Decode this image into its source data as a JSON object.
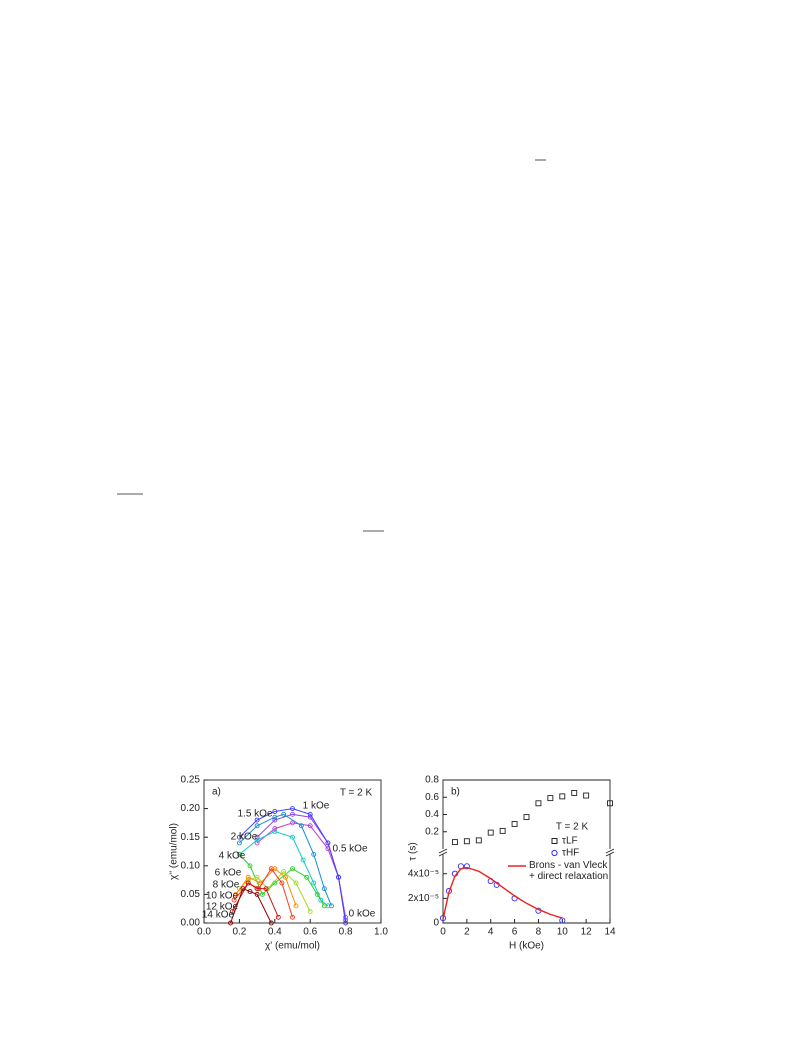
{
  "chart_data": [
    {
      "type": "scatter",
      "label": "a)",
      "annotation": "T = 2 K",
      "x_label": "χ' (emu/mol)",
      "y_label": "χ'' (emu/mol)",
      "xlim": [
        0,
        1
      ],
      "ylim": [
        0,
        0.25
      ],
      "xticks": [
        {
          "value": 0,
          "label": "0.0"
        },
        {
          "value": 0.2,
          "label": "0.2"
        },
        {
          "value": 0.4,
          "label": "0.4"
        },
        {
          "value": 0.6,
          "label": "0.6"
        },
        {
          "value": 0.8,
          "label": "0.8"
        },
        {
          "value": 1,
          "label": "1.0"
        }
      ],
      "yticks": [
        {
          "value": 0,
          "label": "0.00"
        },
        {
          "value": 0.05,
          "label": "0.05"
        },
        {
          "value": 0.1,
          "label": "0.10"
        },
        {
          "value": 0.15,
          "label": "0.15"
        },
        {
          "value": 0.2,
          "label": "0.20"
        },
        {
          "value": 0.25,
          "label": "0.25"
        }
      ],
      "series": [
        {
          "name": "0 kOe",
          "color": "#c040d0",
          "x": [
            0.3,
            0.4,
            0.5,
            0.6,
            0.7,
            0.76,
            0.8
          ],
          "y": [
            0.14,
            0.165,
            0.175,
            0.17,
            0.13,
            0.08,
            0.01
          ]
        },
        {
          "name": "0.5 kOe",
          "color": "#9040f0",
          "x": [
            0.3,
            0.4,
            0.5,
            0.6,
            0.7,
            0.76,
            0.8
          ],
          "y": [
            0.15,
            0.18,
            0.19,
            0.185,
            0.14,
            0.08,
            0.005
          ]
        },
        {
          "name": "1 kOe",
          "color": "#4040ff",
          "x": [
            0.2,
            0.3,
            0.4,
            0.5,
            0.6,
            0.7,
            0.76,
            0.8
          ],
          "y": [
            0.15,
            0.18,
            0.195,
            0.2,
            0.19,
            0.14,
            0.08,
            0.0
          ]
        },
        {
          "name": "1.5 kOe",
          "color": "#1a90d0",
          "x": [
            0.2,
            0.3,
            0.4,
            0.45,
            0.55,
            0.62,
            0.68,
            0.72
          ],
          "y": [
            0.14,
            0.17,
            0.185,
            0.19,
            0.17,
            0.12,
            0.06,
            0.03
          ]
        },
        {
          "name": "2 kOe",
          "color": "#10c8c8",
          "x": [
            0.2,
            0.3,
            0.4,
            0.5,
            0.56,
            0.62,
            0.66,
            0.7
          ],
          "y": [
            0.12,
            0.145,
            0.16,
            0.15,
            0.11,
            0.07,
            0.04,
            0.03
          ]
        },
        {
          "name": "4 kOe",
          "color": "#30d030",
          "x": [
            0.2,
            0.26,
            0.33,
            0.4,
            0.5,
            0.58,
            0.64,
            0.68
          ],
          "y": [
            0.12,
            0.1,
            0.05,
            0.07,
            0.095,
            0.08,
            0.05,
            0.03
          ]
        },
        {
          "name": "6 kOe",
          "color": "#a8d820",
          "x": [
            0.2,
            0.25,
            0.3,
            0.36,
            0.45,
            0.52,
            0.6
          ],
          "y": [
            0.06,
            0.075,
            0.08,
            0.06,
            0.09,
            0.07,
            0.02
          ]
        },
        {
          "name": "8 kOe",
          "color": "#ff8c00",
          "x": [
            0.18,
            0.25,
            0.32,
            0.4,
            0.46,
            0.52
          ],
          "y": [
            0.05,
            0.08,
            0.07,
            0.095,
            0.08,
            0.03
          ]
        },
        {
          "name": "10 kOe",
          "color": "#ff3a20",
          "x": [
            0.17,
            0.25,
            0.31,
            0.38,
            0.44,
            0.5
          ],
          "y": [
            0.04,
            0.07,
            0.06,
            0.095,
            0.07,
            0.01
          ]
        },
        {
          "name": "12 kOe",
          "color": "#d01010",
          "x": [
            0.16,
            0.25,
            0.3,
            0.35,
            0.42
          ],
          "y": [
            0.02,
            0.07,
            0.06,
            0.06,
            0.01
          ]
        },
        {
          "name": "14 kOe",
          "color": "#8b0000",
          "x": [
            0.15,
            0.22,
            0.26,
            0.3,
            0.38
          ],
          "y": [
            0.0,
            0.06,
            0.055,
            0.05,
            0.0
          ]
        }
      ]
    },
    {
      "type": "scatter",
      "label": "b)",
      "annotation": "T = 2 K",
      "x_label": "H (kOe)",
      "y_label": "τ (s)",
      "xlim": [
        0,
        14
      ],
      "xticks": [
        0,
        2,
        4,
        6,
        8,
        10,
        12,
        14
      ],
      "ylim": [
        0,
        5.6e-05
      ],
      "yticks": [
        0,
        {
          "value": 2e-05,
          "label": "2x10⁻⁵"
        },
        {
          "value": 4e-05,
          "label": "4x10⁻⁵"
        }
      ],
      "y2lim": [
        0,
        0.8
      ],
      "y2ticks": [
        0.2,
        0.4,
        0.6,
        0.8
      ],
      "series": [
        {
          "name": "τLF",
          "color": "#222222",
          "marker": "square",
          "axis": "y2",
          "x": [
            1,
            2,
            3,
            4,
            5,
            6,
            7,
            8,
            9,
            10,
            11,
            12,
            14
          ],
          "y": [
            0.08,
            0.09,
            0.1,
            0.19,
            0.21,
            0.29,
            0.37,
            0.53,
            0.59,
            0.61,
            0.65,
            0.62,
            0.53
          ]
        },
        {
          "name": "τHF",
          "color": "#3030ff",
          "marker": "circle",
          "x": [
            0,
            0.5,
            1,
            1.5,
            2,
            4,
            4.5,
            6,
            8,
            10
          ],
          "y": [
            4e-06,
            2.6e-05,
            4e-05,
            4.6e-05,
            4.6e-05,
            3.4e-05,
            3.1e-05,
            2e-05,
            1e-05,
            2e-06
          ]
        },
        {
          "name": "Brons - van Vleck + direct relaxation",
          "color": "#ee2020",
          "marker": "line",
          "x": [
            0,
            0.5,
            1,
            1.5,
            2,
            3,
            4,
            5,
            6,
            7,
            8,
            9,
            10
          ],
          "y": [
            3e-06,
            2.5e-05,
            3.8e-05,
            4.4e-05,
            4.5e-05,
            4.2e-05,
            3.6e-05,
            2.9e-05,
            2.2e-05,
            1.6e-05,
            1.1e-05,
            7e-06,
            4e-06
          ]
        }
      ]
    }
  ]
}
